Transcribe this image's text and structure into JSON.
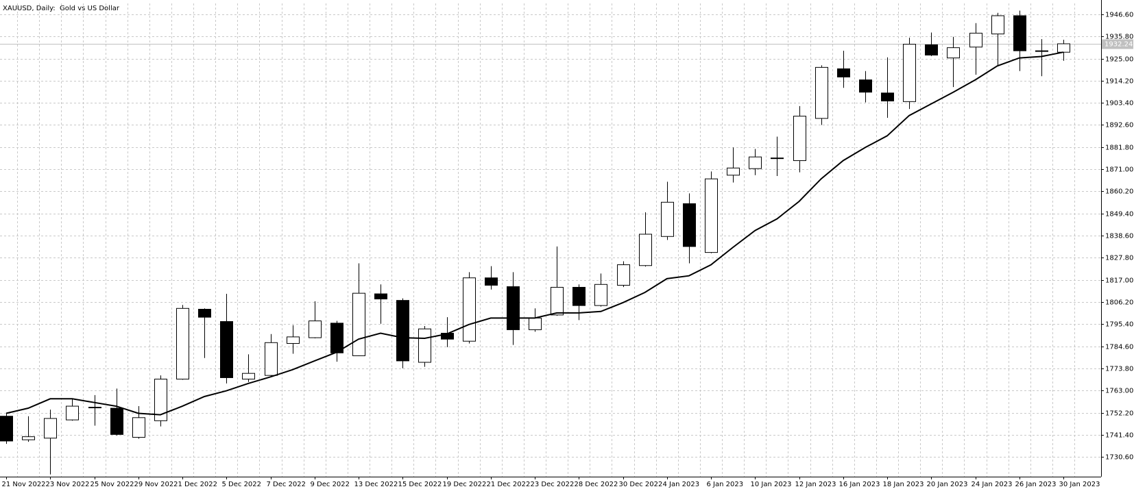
{
  "chart_data": {
    "type": "candlestick",
    "title": "XAUUSD, Daily:  Gold vs US Dollar",
    "categories": [
      "21 Nov 2022",
      null,
      "23 Nov 2022",
      null,
      "25 Nov 2022",
      null,
      "29 Nov 2022",
      null,
      "1 Dec 2022",
      null,
      "5 Dec 2022",
      null,
      "7 Dec 2022",
      null,
      "9 Dec 2022",
      null,
      "13 Dec 2022",
      null,
      "15 Dec 2022",
      null,
      "19 Dec 2022",
      null,
      "21 Dec 2022",
      null,
      "23 Dec 2022",
      null,
      "28 Dec 2022",
      null,
      "30 Dec 2022",
      null,
      "4 Jan 2023",
      null,
      "6 Jan 2023",
      null,
      "10 Jan 2023",
      null,
      "12 Jan 2023",
      null,
      "16 Jan 2023",
      null,
      "18 Jan 2023",
      null,
      "20 Jan 2023",
      null,
      "24 Jan 2023",
      null,
      "26 Jan 2023",
      null,
      "30 Jan 2023"
    ],
    "open": [
      1750.5,
      1739.0,
      1739.8,
      1748.7,
      1754.7,
      1754.4,
      1740.2,
      1748.3,
      1768.6,
      1802.7,
      1796.7,
      1768.6,
      1770.4,
      1786.0,
      1788.8,
      1795.9,
      1780.0,
      1810.2,
      1807.0,
      1776.8,
      1791.0,
      1787.1,
      1818.0,
      1813.7,
      1792.7,
      1799.9,
      1813.4,
      1804.5,
      1814.4,
      1824.0,
      1838.2,
      1854.2,
      1830.4,
      1868.1,
      1871.3,
      1876.3,
      1875.2,
      1895.8,
      1920.0,
      1914.6,
      1908.2,
      1904.0,
      1931.7,
      1925.3,
      1930.6,
      1937.0,
      1945.9,
      1928.6,
      1928.1
    ],
    "high": [
      1751.9,
      1750.5,
      1753.7,
      1759.0,
      1760.8,
      1764.0,
      1755.4,
      1770.4,
      1804.8,
      1803.1,
      1810.2,
      1780.7,
      1790.6,
      1794.9,
      1806.6,
      1797.0,
      1825.1,
      1814.8,
      1808.0,
      1794.5,
      1798.8,
      1820.8,
      1823.7,
      1820.8,
      1803.1,
      1833.3,
      1814.8,
      1820.1,
      1826.1,
      1850.0,
      1864.9,
      1859.2,
      1869.9,
      1881.6,
      1880.9,
      1886.9,
      1901.8,
      1921.7,
      1928.8,
      1918.9,
      1925.6,
      1935.2,
      1937.7,
      1935.6,
      1942.3,
      1947.3,
      1948.4,
      1934.5,
      1934.2
    ],
    "low": [
      1737.0,
      1738.0,
      1722.1,
      1748.3,
      1745.9,
      1741.0,
      1739.5,
      1745.5,
      1768.3,
      1778.9,
      1766.5,
      1767.2,
      1770.0,
      1781.0,
      1788.5,
      1777.1,
      1779.8,
      1795.6,
      1773.9,
      1774.6,
      1784.2,
      1786.0,
      1812.3,
      1785.3,
      1791.7,
      1799.5,
      1797.4,
      1804.0,
      1813.5,
      1823.5,
      1836.5,
      1825.1,
      1830.0,
      1864.5,
      1868.1,
      1867.7,
      1869.5,
      1892.6,
      1910.7,
      1903.6,
      1896.1,
      1900.4,
      1926.2,
      1911.1,
      1917.1,
      1921.7,
      1918.9,
      1916.4,
      1923.9
    ],
    "close": [
      1738.4,
      1740.5,
      1749.4,
      1755.4,
      1754.9,
      1741.6,
      1749.8,
      1768.6,
      1803.1,
      1798.8,
      1769.3,
      1771.4,
      1786.4,
      1789.2,
      1797.0,
      1781.4,
      1810.5,
      1807.7,
      1777.5,
      1793.1,
      1788.1,
      1818.0,
      1814.4,
      1792.7,
      1798.4,
      1813.4,
      1804.5,
      1814.8,
      1824.4,
      1839.3,
      1854.9,
      1833.3,
      1866.3,
      1871.6,
      1877.0,
      1876.5,
      1896.9,
      1920.7,
      1916.0,
      1908.6,
      1904.3,
      1932.0,
      1926.7,
      1930.3,
      1937.4,
      1945.9,
      1928.8,
      1928.8,
      1932.2
    ],
    "moving_average": [
      1751.9,
      1754.4,
      1759.0,
      1759.0,
      1757.2,
      1755.4,
      1751.9,
      1751.2,
      1755.4,
      1760.1,
      1762.9,
      1766.5,
      1769.7,
      1773.2,
      1777.5,
      1781.7,
      1788.1,
      1791.0,
      1788.8,
      1788.5,
      1790.6,
      1795.2,
      1798.4,
      1798.4,
      1798.4,
      1800.9,
      1800.9,
      1801.6,
      1805.9,
      1810.9,
      1817.6,
      1819.0,
      1824.4,
      1832.9,
      1841.1,
      1846.8,
      1855.3,
      1866.3,
      1875.2,
      1881.6,
      1887.3,
      1897.2,
      1902.9,
      1908.6,
      1914.6,
      1921.4,
      1925.3,
      1926.0,
      1928.1
    ],
    "up_color": "#ffffff",
    "down_color": "#000000",
    "line_color": "#000000",
    "last_price": 1932.24,
    "ylim": [
      1721.0,
      1951.9
    ],
    "yticks": [
      {
        "value": 1730.6,
        "label": "1730.60"
      },
      {
        "value": 1741.4,
        "label": "1741.40"
      },
      {
        "value": 1752.2,
        "label": "1752.20"
      },
      {
        "value": 1763.0,
        "label": "1763.00"
      },
      {
        "value": 1773.8,
        "label": "1773.80"
      },
      {
        "value": 1784.6,
        "label": "1784.60"
      },
      {
        "value": 1795.4,
        "label": "1795.40"
      },
      {
        "value": 1806.2,
        "label": "1806.20"
      },
      {
        "value": 1817.0,
        "label": "1817.00"
      },
      {
        "value": 1827.8,
        "label": "1827.80"
      },
      {
        "value": 1838.6,
        "label": "1838.60"
      },
      {
        "value": 1849.4,
        "label": "1849.40"
      },
      {
        "value": 1860.2,
        "label": "1860.20"
      },
      {
        "value": 1871.0,
        "label": "1871.00"
      },
      {
        "value": 1881.8,
        "label": "1881.80"
      },
      {
        "value": 1892.6,
        "label": "1892.60"
      },
      {
        "value": 1903.4,
        "label": "1903.40"
      },
      {
        "value": 1914.2,
        "label": "1914.20"
      },
      {
        "value": 1925.0,
        "label": "1925.00"
      },
      {
        "value": 1935.8,
        "label": "1935.80"
      },
      {
        "value": 1946.6,
        "label": "1946.60"
      }
    ],
    "grid": true
  }
}
